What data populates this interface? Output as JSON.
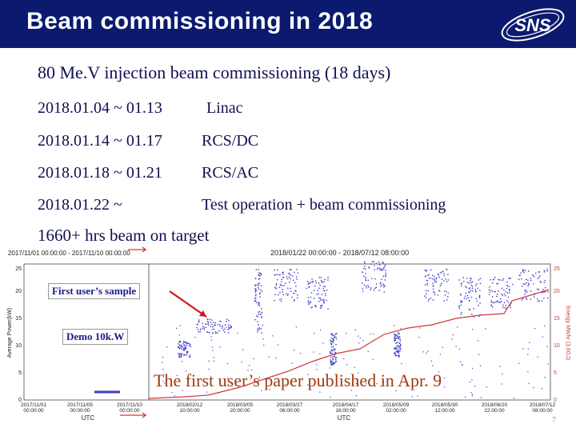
{
  "header": {
    "title": "Beam commissioning in 2018",
    "logo_text": "SNS"
  },
  "subtitle": "80 Me.V injection beam commissioning (18 days)",
  "schedule": [
    {
      "dates": "2018.01.04 ~ 01.13",
      "activity": "Linac"
    },
    {
      "dates": "2018.01.14 ~ 01.17",
      "activity": "RCS/DC"
    },
    {
      "dates": "2018.01.18 ~ 01.21",
      "activity": "RCS/AC"
    },
    {
      "dates": "2018.01.22 ~",
      "activity": "Test operation + beam commissioning"
    }
  ],
  "hours": "1660+ hrs beam on target",
  "plot": {
    "left_range_label": "2017/11/01 00:00:00 - 2017/11/10 00:00:00",
    "main_range_label": "2018/01/22 00:00:00 - 2018/07/12 08:00:00",
    "y_left_label": "Average Power(kW)",
    "y_right_label": "Energy MWhr (3.6GJ)",
    "y_left_ticks": [
      "0",
      "5",
      "10",
      "15",
      "20",
      "25"
    ],
    "y_right_ticks": [
      "0",
      "5",
      "10",
      "15",
      "20",
      "25"
    ],
    "x_label": "UTC",
    "x_ticks_left": [
      {
        "date": "2017/11/01",
        "time": "00:00:00"
      },
      {
        "date": "2017/11/05",
        "time": "00:00:00"
      },
      {
        "date": "2017/11/10",
        "time": "00:00:00"
      }
    ],
    "x_ticks_main": [
      {
        "date": "2018/02/12",
        "time": "10:00:00"
      },
      {
        "date": "2018/03/05",
        "time": "20:00:00"
      },
      {
        "date": "2018/03/27",
        "time": "06:00:00"
      },
      {
        "date": "2018/04/17",
        "time": "16:00:00"
      },
      {
        "date": "2018/05/09",
        "time": "02:00:00"
      },
      {
        "date": "2018/05/30",
        "time": "12:00:00"
      },
      {
        "date": "2018/06/20",
        "time": "22:00:00"
      },
      {
        "date": "2018/07/12",
        "time": "08:00:00"
      }
    ],
    "power_color": "#3c3cc8",
    "energy_color": "#d23a3a"
  },
  "callouts": {
    "first_sample": "First user’s sample",
    "demo": "Demo 10k.W",
    "paper": "The first user’s paper published in Apr. 9"
  },
  "page_number": "7"
}
